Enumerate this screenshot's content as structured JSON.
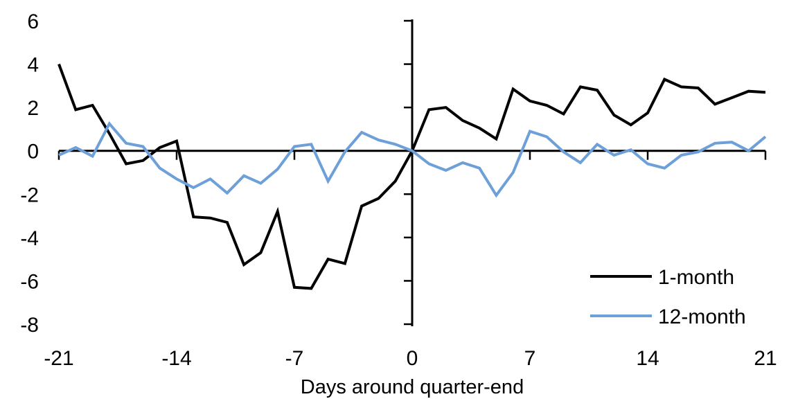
{
  "chart_data": {
    "type": "line",
    "title": "",
    "xlabel": "Days around quarter-end",
    "ylabel": "",
    "xlim": [
      -21,
      21
    ],
    "ylim": [
      -8,
      6
    ],
    "xticks": [
      -21,
      -14,
      -7,
      0,
      7,
      14,
      21
    ],
    "yticks": [
      6,
      4,
      2,
      0,
      -2,
      -4,
      -6,
      -8
    ],
    "grid": false,
    "legend_position": "inside-lower-right",
    "x": [
      -21,
      -20,
      -19,
      -18,
      -17,
      -16,
      -15,
      -14,
      -13,
      -12,
      -11,
      -10,
      -9,
      -8,
      -7,
      -6,
      -5,
      -4,
      -3,
      -2,
      -1,
      0,
      1,
      2,
      3,
      4,
      5,
      6,
      7,
      8,
      9,
      10,
      11,
      12,
      13,
      14,
      15,
      16,
      17,
      18,
      19,
      20,
      21
    ],
    "series": [
      {
        "name": "1-month",
        "color": "#000000",
        "values": [
          4.0,
          1.9,
          2.1,
          0.8,
          -0.6,
          -0.45,
          0.15,
          0.45,
          -3.05,
          -3.1,
          -3.3,
          -5.25,
          -4.7,
          -2.8,
          -6.3,
          -6.35,
          -5.0,
          -5.2,
          -2.55,
          -2.2,
          -1.4,
          0.0,
          1.9,
          2.0,
          1.4,
          1.05,
          0.55,
          2.85,
          2.3,
          2.1,
          1.7,
          2.95,
          2.8,
          1.65,
          1.2,
          1.75,
          3.3,
          2.95,
          2.9,
          2.15,
          2.45,
          2.75,
          2.7
        ]
      },
      {
        "name": "12-month",
        "color": "#6D9FD8",
        "values": [
          -0.2,
          0.15,
          -0.25,
          1.25,
          0.35,
          0.2,
          -0.8,
          -1.3,
          -1.7,
          -1.3,
          -1.95,
          -1.15,
          -1.5,
          -0.85,
          0.2,
          0.3,
          -1.4,
          -0.05,
          0.85,
          0.5,
          0.3,
          0.0,
          -0.6,
          -0.9,
          -0.55,
          -0.8,
          -2.05,
          -1.0,
          0.9,
          0.65,
          -0.05,
          -0.55,
          0.3,
          -0.2,
          0.05,
          -0.6,
          -0.8,
          -0.2,
          -0.05,
          0.35,
          0.4,
          0.0,
          0.65
        ]
      }
    ]
  }
}
